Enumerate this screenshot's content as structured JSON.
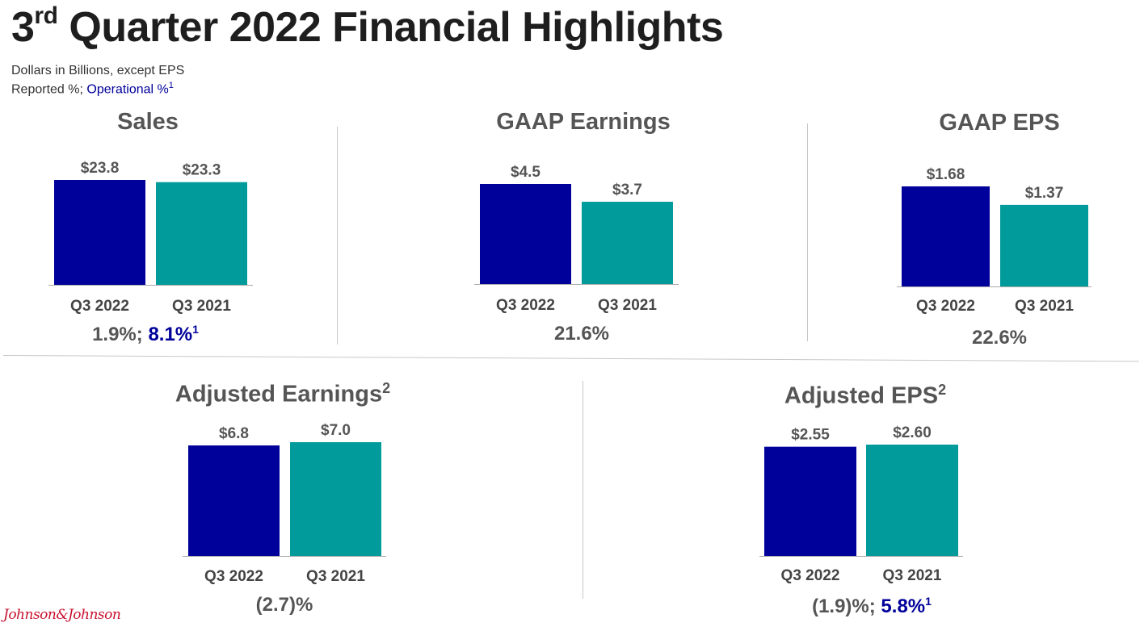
{
  "header": {
    "title_prefix": "3",
    "title_sup": "rd",
    "title_rest": " Quarter 2022 Financial Highlights",
    "subtitle_line1": "Dollars in Billions, except EPS",
    "subtitle_reported": "Reported %; ",
    "subtitle_operational": "Operational %",
    "subtitle_operational_sup": "1"
  },
  "colors": {
    "q3_2022": "#00009a",
    "q3_2021": "#009b9a",
    "operational_text": "#00009a"
  },
  "panels": {
    "sales": {
      "title": "Sales",
      "title_sup": "",
      "growth_reported": "1.9%;",
      "growth_operational": "8.1%",
      "growth_operational_sup": "1"
    },
    "gaap_earnings": {
      "title": "GAAP Earnings",
      "title_sup": "",
      "growth_reported": "21.6%"
    },
    "gaap_eps": {
      "title": "GAAP EPS",
      "title_sup": "",
      "growth_reported": "22.6%"
    },
    "adjusted_earnings": {
      "title": "Adjusted Earnings",
      "title_sup": "2",
      "growth_reported": "(2.7)%"
    },
    "adjusted_eps": {
      "title": "Adjusted EPS",
      "title_sup": "2",
      "growth_reported": "(1.9)%;",
      "growth_operational": "5.8%",
      "growth_operational_sup": "1"
    }
  },
  "chart_data": [
    {
      "id": "sales",
      "type": "bar",
      "title": "Sales",
      "categories": [
        "Q3 2022",
        "Q3 2021"
      ],
      "values": [
        23.8,
        23.3
      ],
      "labels": [
        "$23.8",
        "$23.3"
      ]
    },
    {
      "id": "gaap_earnings",
      "type": "bar",
      "title": "GAAP Earnings",
      "categories": [
        "Q3 2022",
        "Q3 2021"
      ],
      "values": [
        4.5,
        3.7
      ],
      "labels": [
        "$4.5",
        "$3.7"
      ]
    },
    {
      "id": "gaap_eps",
      "type": "bar",
      "title": "GAAP EPS",
      "categories": [
        "Q3 2022",
        "Q3 2021"
      ],
      "values": [
        1.68,
        1.37
      ],
      "labels": [
        "$1.68",
        "$1.37"
      ]
    },
    {
      "id": "adjusted_earnings",
      "type": "bar",
      "title": "Adjusted Earnings",
      "categories": [
        "Q3 2022",
        "Q3 2021"
      ],
      "values": [
        6.8,
        7.0
      ],
      "labels": [
        "$6.8",
        "$7.0"
      ]
    },
    {
      "id": "adjusted_eps",
      "type": "bar",
      "title": "Adjusted EPS",
      "categories": [
        "Q3 2022",
        "Q3 2021"
      ],
      "values": [
        2.55,
        2.6
      ],
      "labels": [
        "$2.55",
        "$2.60"
      ]
    }
  ],
  "footer": {
    "logo_text": "Johnson&Johnson"
  }
}
